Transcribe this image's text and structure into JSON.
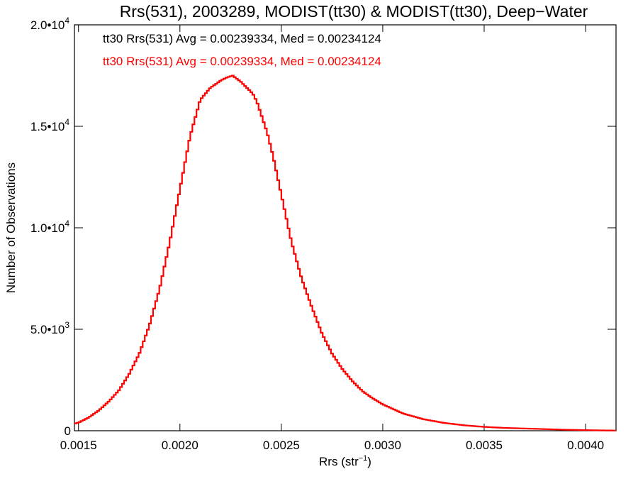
{
  "chart_data": {
    "type": "histogram",
    "title": "Rrs(531), 2003289, MODIST(tt30) & MODIST(tt30), Deep−Water",
    "xlabel": {
      "base": "Rrs (str",
      "sup": "−1",
      "close": ")"
    },
    "ylabel": "Number of Observations",
    "xlim": [
      0.00148,
      0.00415
    ],
    "ylim": [
      0,
      20000
    ],
    "x_ticks": [
      {
        "value": 0.0015,
        "label": "0.0015"
      },
      {
        "value": 0.002,
        "label": "0.0020"
      },
      {
        "value": 0.0025,
        "label": "0.0025"
      },
      {
        "value": 0.003,
        "label": "0.0030"
      },
      {
        "value": 0.0035,
        "label": "0.0035"
      },
      {
        "value": 0.004,
        "label": "0.0040"
      }
    ],
    "y_ticks": [
      {
        "value": 0,
        "mant": "0",
        "exp": ""
      },
      {
        "value": 5000,
        "mant": "5.0•10",
        "exp": "3"
      },
      {
        "value": 10000,
        "mant": "1.0•10",
        "exp": "4"
      },
      {
        "value": 15000,
        "mant": "1.5•10",
        "exp": "4"
      },
      {
        "value": 20000,
        "mant": "2.0•10",
        "exp": "4"
      }
    ],
    "legend": [
      {
        "text": "tt30 Rrs(531) Avg = 0.00239334, Med = 0.00234124",
        "color": "#000000"
      },
      {
        "text": "tt30 Rrs(531) Avg = 0.00239334, Med = 0.00234124",
        "color": "#ff0000"
      }
    ],
    "series": [
      {
        "color": "#ff0000",
        "x": [
          0.00148,
          0.0015,
          0.00155,
          0.0016,
          0.00165,
          0.0017,
          0.00175,
          0.0018,
          0.00185,
          0.0019,
          0.00195,
          0.002,
          0.00205,
          0.0021,
          0.00215,
          0.00218,
          0.0022,
          0.00223,
          0.00226,
          0.00228,
          0.0023,
          0.00233,
          0.00236,
          0.00238,
          0.0024,
          0.00243,
          0.00246,
          0.00249,
          0.00252,
          0.00255,
          0.0026,
          0.00265,
          0.0027,
          0.00275,
          0.0028,
          0.00285,
          0.0029,
          0.00295,
          0.003,
          0.0031,
          0.0032,
          0.0033,
          0.0034,
          0.0035,
          0.0036,
          0.0037,
          0.0038,
          0.0039,
          0.004,
          0.0041,
          0.00415
        ],
        "y": [
          350,
          400,
          650,
          1000,
          1450,
          2000,
          2800,
          3800,
          5200,
          7000,
          9300,
          11900,
          14500,
          16300,
          16900,
          17100,
          17250,
          17400,
          17500,
          17350,
          17200,
          16900,
          16600,
          16200,
          15600,
          14700,
          13500,
          12100,
          10700,
          9300,
          7500,
          6100,
          4800,
          3800,
          3050,
          2450,
          1950,
          1600,
          1300,
          850,
          570,
          390,
          270,
          190,
          140,
          110,
          80,
          50,
          30,
          15,
          10
        ]
      }
    ]
  }
}
